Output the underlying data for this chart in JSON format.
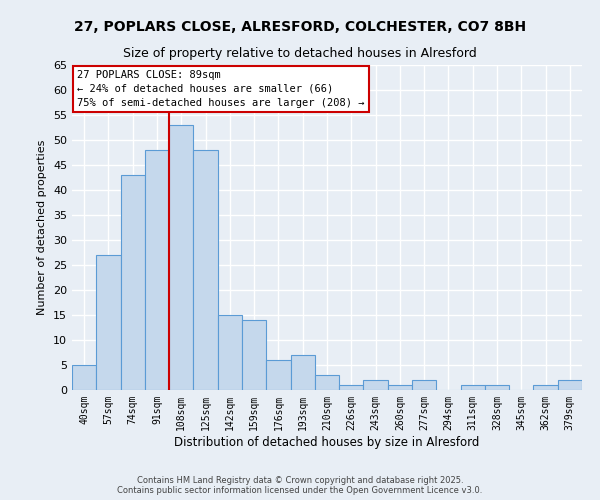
{
  "title_line1": "27, POPLARS CLOSE, ALRESFORD, COLCHESTER, CO7 8BH",
  "title_line2": "Size of property relative to detached houses in Alresford",
  "xlabel": "Distribution of detached houses by size in Alresford",
  "ylabel": "Number of detached properties",
  "categories": [
    "40sqm",
    "57sqm",
    "74sqm",
    "91sqm",
    "108sqm",
    "125sqm",
    "142sqm",
    "159sqm",
    "176sqm",
    "193sqm",
    "210sqm",
    "226sqm",
    "243sqm",
    "260sqm",
    "277sqm",
    "294sqm",
    "311sqm",
    "328sqm",
    "345sqm",
    "362sqm",
    "379sqm"
  ],
  "values": [
    5,
    27,
    43,
    48,
    53,
    48,
    15,
    14,
    6,
    7,
    3,
    1,
    2,
    1,
    2,
    0,
    1,
    1,
    0,
    1,
    2
  ],
  "bar_color": "#c5d8ec",
  "bar_edge_color": "#5b9bd5",
  "bg_color": "#e8eef5",
  "grid_color": "#ffffff",
  "annotation_text": "27 POPLARS CLOSE: 89sqm\n← 24% of detached houses are smaller (66)\n75% of semi-detached houses are larger (208) →",
  "annotation_box_color": "#ffffff",
  "annotation_box_edge": "#cc0000",
  "vline_x": 3.5,
  "vline_color": "#cc0000",
  "ylim": [
    0,
    65
  ],
  "yticks": [
    0,
    5,
    10,
    15,
    20,
    25,
    30,
    35,
    40,
    45,
    50,
    55,
    60,
    65
  ],
  "footer_line1": "Contains HM Land Registry data © Crown copyright and database right 2025.",
  "footer_line2": "Contains public sector information licensed under the Open Government Licence v3.0."
}
